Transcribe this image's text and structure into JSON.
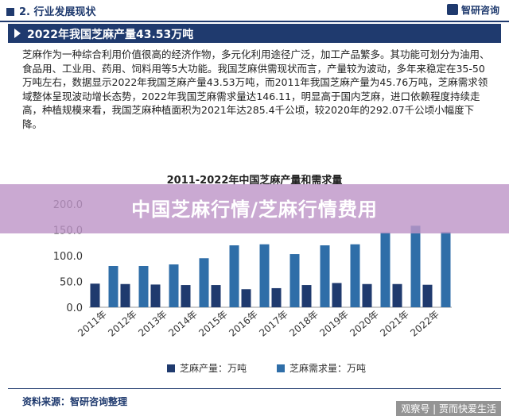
{
  "header": {
    "section": "2. 行业发展现状",
    "brand": "智研咨询"
  },
  "banner": {
    "title": "2022年我国芝麻产量43.53万吨"
  },
  "paragraph": "芝麻作为一种综合利用价值很高的经济作物，多元化利用途径广泛，加工产品繁多。其功能可划分为油用、食品用、工业用、药用、饲料用等5大功能。我国芝麻供需现状而言，产量较为波动，多年来稳定在35-50万吨左右，数据显示2022年我国芝麻产量43.53万吨，而2011年我国芝麻产量为45.76万吨，芝麻需求领域整体呈现波动增长态势，2022年我国芝麻需求量达146.11，明显高于国内芝麻，进口依赖程度持续走高，种植规模来看，我国芝麻种植面积为2021年达285.4千公顷，较2020年的292.07千公顷小幅度下降。",
  "overlay": {
    "text": "中国芝麻行情/芝麻行情费用"
  },
  "chart_data": {
    "type": "bar",
    "title": "2011-2022年中国芝麻产量和需求量",
    "categories": [
      "2011年",
      "2012年",
      "2013年",
      "2014年",
      "2015年",
      "2016年",
      "2017年",
      "2018年",
      "2019年",
      "2020年",
      "2021年",
      "2022年"
    ],
    "series": [
      {
        "name": "芝麻产量：万吨",
        "color": "#1f3a6e",
        "values": [
          45.76,
          45,
          44,
          43,
          43,
          35,
          37,
          43,
          47,
          45,
          45,
          43.53
        ]
      },
      {
        "name": "芝麻需求量：万吨",
        "color": "#2f6ea8",
        "values": [
          80,
          80,
          83,
          95,
          120,
          122,
          103,
          120,
          122,
          145,
          158,
          146.11
        ]
      }
    ],
    "ylim": [
      0,
      200
    ],
    "yticks": [
      "0.0",
      "50.0",
      "100.0",
      "150.0",
      "200.0"
    ],
    "legend_position": "bottom",
    "grid": false
  },
  "footer": {
    "source": "资料来源：智研咨询整理",
    "credit": "观察号 | 贾而快爱生活"
  }
}
